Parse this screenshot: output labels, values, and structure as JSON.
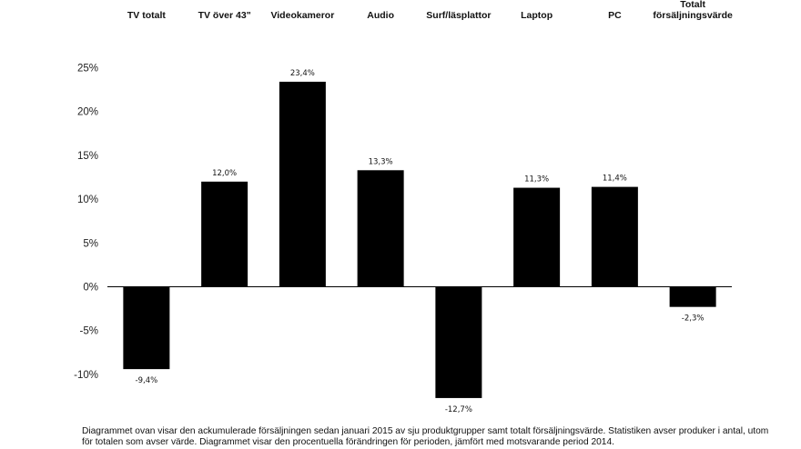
{
  "chart_data": {
    "type": "bar",
    "categories": [
      "TV totalt",
      "TV över 43\"",
      "Videokameror",
      "Audio",
      "Surf/läsplattor",
      "Laptop",
      "PC",
      "Totalt försäljningsvärde"
    ],
    "values": [
      -9.4,
      12.0,
      23.4,
      13.3,
      -12.7,
      11.3,
      11.4,
      -2.3
    ],
    "data_labels": [
      "-9,4%",
      "12,0%",
      "23,4%",
      "13,3%",
      "-12,7%",
      "11,3%",
      "11,4%",
      "-2,3%"
    ],
    "y_ticks": [
      25,
      20,
      15,
      10,
      5,
      0,
      -5,
      -10
    ],
    "y_tick_labels": [
      "25%",
      "20%",
      "15%",
      "10%",
      "5%",
      "0%",
      "-5%",
      "-10%"
    ],
    "ylim": [
      -12.7,
      25
    ],
    "category_labels_position": "top",
    "grid": false,
    "legend": "none",
    "bar_color": "#000000",
    "title": "",
    "xlabel": "",
    "ylabel": ""
  },
  "caption": {
    "line1": "Diagrammet ovan visar den ackumulerade försäljningen sedan januari 2015 av sju produktgrupper samt totalt försäljningsvärde.  Statistiken avser produker i antal, utom",
    "line2": "för totalen som avser värde. Diagrammet visar den procentuella förändringen för perioden, jämfört med motsvarande period 2014."
  }
}
